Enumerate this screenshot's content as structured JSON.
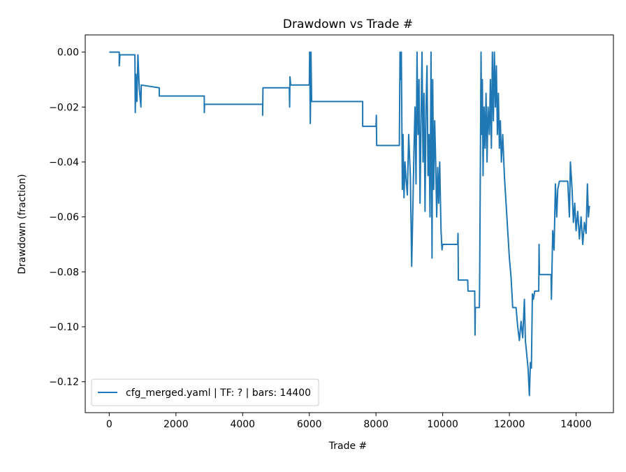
{
  "chart_data": {
    "type": "line",
    "title": "Drawdown vs Trade #",
    "x_label": "Trade #",
    "y_label": "Drawdown (fraction)",
    "x": [
      0,
      300,
      300,
      320,
      770,
      780,
      800,
      830,
      860,
      900,
      950,
      960,
      1500,
      1500,
      2850,
      2850,
      2860,
      4600,
      4600,
      4610,
      5400,
      5410,
      5420,
      5440,
      6000,
      6010,
      6030,
      6050,
      6070,
      7600,
      7600,
      8000,
      8010,
      8020,
      8700,
      8720,
      8740,
      8760,
      8790,
      8810,
      8840,
      8870,
      8900,
      8940,
      8980,
      9030,
      9070,
      9100,
      9140,
      9170,
      9200,
      9230,
      9260,
      9290,
      9320,
      9350,
      9380,
      9410,
      9440,
      9470,
      9500,
      9530,
      9560,
      9590,
      9620,
      9650,
      9680,
      9700,
      9730,
      9760,
      9790,
      9820,
      9850,
      9880,
      9910,
      9950,
      9980,
      10000,
      10450,
      10460,
      10470,
      10750,
      10760,
      10960,
      10970,
      10980,
      11100,
      11110,
      11130,
      11150,
      11170,
      11190,
      11210,
      11240,
      11270,
      11300,
      11330,
      11360,
      11400,
      11430,
      11460,
      11490,
      11520,
      11550,
      11580,
      11610,
      11640,
      11670,
      11700,
      11730,
      11760,
      11800,
      11850,
      11900,
      11950,
      12000,
      12050,
      12100,
      12200,
      12250,
      12300,
      12350,
      12400,
      12450,
      12480,
      12520,
      12560,
      12600,
      12630,
      12660,
      12690,
      12720,
      12760,
      12880,
      12890,
      12900,
      13250,
      13260,
      13300,
      13340,
      13380,
      13420,
      13450,
      13500,
      13750,
      13800,
      13830,
      13880,
      13920,
      13960,
      14000,
      14050,
      14100,
      14150,
      14200,
      14250,
      14300,
      14340,
      14370,
      14400
    ],
    "series": [
      {
        "name": "cfg_merged.yaml | TF: ? | bars: 14400",
        "color": "#1f77b4",
        "values": [
          0,
          0,
          -0.005,
          -0.001,
          -0.001,
          -0.022,
          -0.008,
          -0.018,
          -0.001,
          -0.013,
          -0.02,
          -0.012,
          -0.013,
          -0.016,
          -0.016,
          -0.022,
          -0.019,
          -0.019,
          -0.023,
          -0.013,
          -0.013,
          -0.02,
          -0.009,
          -0.012,
          -0.012,
          0,
          -0.026,
          0,
          -0.018,
          -0.018,
          -0.027,
          -0.027,
          -0.023,
          -0.034,
          -0.034,
          0,
          -0.01,
          0,
          -0.05,
          -0.03,
          -0.053,
          -0.04,
          -0.046,
          -0.052,
          -0.03,
          -0.045,
          -0.078,
          -0.06,
          -0.035,
          -0.02,
          -0.048,
          0,
          -0.03,
          -0.01,
          -0.055,
          -0.025,
          0,
          -0.04,
          -0.015,
          -0.058,
          -0.02,
          -0.005,
          -0.045,
          -0.03,
          -0.06,
          0,
          -0.075,
          -0.01,
          -0.05,
          -0.025,
          -0.04,
          -0.06,
          -0.042,
          -0.055,
          -0.04,
          -0.065,
          -0.072,
          -0.07,
          -0.07,
          -0.066,
          -0.083,
          -0.083,
          -0.087,
          -0.087,
          -0.103,
          -0.093,
          -0.093,
          -0.08,
          -0.04,
          0,
          -0.03,
          -0.01,
          -0.045,
          -0.02,
          -0.035,
          -0.015,
          -0.04,
          -0.02,
          -0.03,
          -0.01,
          -0.035,
          0,
          -0.025,
          0,
          -0.02,
          -0.005,
          -0.03,
          -0.015,
          -0.035,
          -0.025,
          -0.04,
          -0.03,
          -0.045,
          -0.055,
          -0.065,
          -0.075,
          -0.082,
          -0.093,
          -0.093,
          -0.1,
          -0.105,
          -0.098,
          -0.104,
          -0.09,
          -0.105,
          -0.11,
          -0.115,
          -0.125,
          -0.113,
          -0.115,
          -0.088,
          -0.09,
          -0.087,
          -0.087,
          -0.07,
          -0.081,
          -0.081,
          -0.09,
          -0.065,
          -0.072,
          -0.048,
          -0.06,
          -0.05,
          -0.047,
          -0.047,
          -0.06,
          -0.04,
          -0.05,
          -0.062,
          -0.055,
          -0.065,
          -0.058,
          -0.068,
          -0.06,
          -0.07,
          -0.062,
          -0.066,
          -0.048,
          -0.06,
          -0.056
        ]
      }
    ],
    "xlim": [
      -720,
      15120
    ],
    "ylim": [
      -0.13125,
      0.00625
    ],
    "xticks": [
      0,
      2000,
      4000,
      6000,
      8000,
      10000,
      12000,
      14000
    ],
    "yticks": [
      {
        "value": -0.12,
        "label": "−0.12"
      },
      {
        "value": -0.1,
        "label": "−0.10"
      },
      {
        "value": -0.08,
        "label": "−0.08"
      },
      {
        "value": -0.06,
        "label": "−0.06"
      },
      {
        "value": -0.04,
        "label": "−0.04"
      },
      {
        "value": -0.02,
        "label": "−0.02"
      },
      {
        "value": 0,
        "label": "0.00"
      }
    ],
    "legend": "lower left"
  }
}
